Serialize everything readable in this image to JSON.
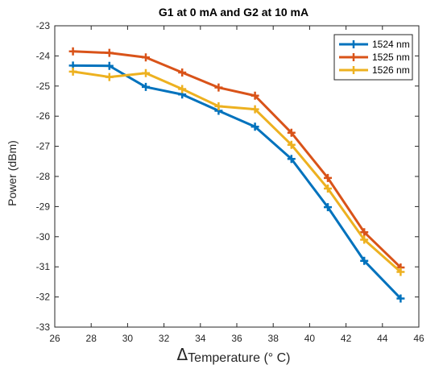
{
  "chart_data": {
    "type": "line",
    "title": "G1 at 0 mA and G2 at 10 mA",
    "xlabel_symbol": "Δ",
    "xlabel_text": "Temperature (° C)",
    "ylabel": "Power (dBm)",
    "xlim": [
      26,
      46
    ],
    "ylim": [
      -33,
      -23
    ],
    "xticks": [
      26,
      28,
      30,
      32,
      34,
      36,
      38,
      40,
      42,
      44,
      46
    ],
    "yticks": [
      -23,
      -24,
      -25,
      -26,
      -27,
      -28,
      -29,
      -30,
      -31,
      -32,
      -33
    ],
    "grid": false,
    "legend_position": "top-right",
    "x": [
      27,
      29,
      31,
      33,
      35,
      37,
      39,
      41,
      43,
      45
    ],
    "series": [
      {
        "name": "1524 nm",
        "color": "#0072BD",
        "values": [
          -24.32,
          -24.33,
          -25.03,
          -25.28,
          -25.82,
          -26.35,
          -27.42,
          -29.02,
          -30.8,
          -32.05
        ]
      },
      {
        "name": "1525 nm",
        "color": "#D95319",
        "values": [
          -23.85,
          -23.9,
          -24.05,
          -24.55,
          -25.05,
          -25.32,
          -26.55,
          -28.05,
          -29.85,
          -31.02
        ]
      },
      {
        "name": "1526 nm",
        "color": "#EDB120",
        "values": [
          -24.52,
          -24.7,
          -24.57,
          -25.1,
          -25.67,
          -25.77,
          -26.95,
          -28.4,
          -30.1,
          -31.17
        ]
      }
    ]
  }
}
